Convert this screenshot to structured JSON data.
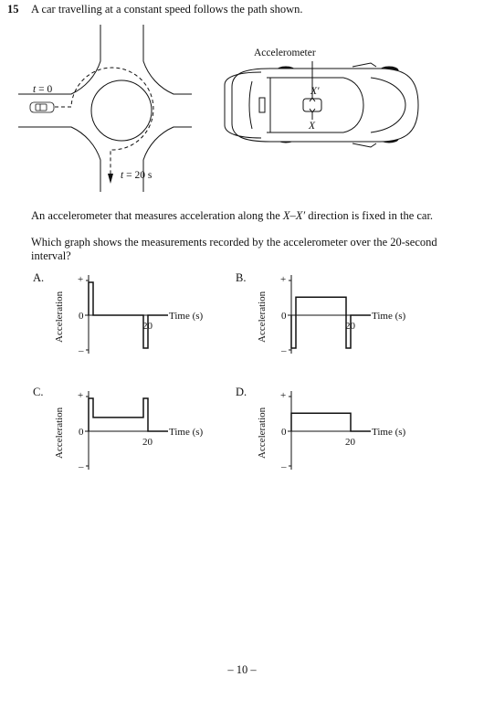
{
  "question": {
    "number": "15",
    "stem": "A car travelling at a constant speed follows the path shown.",
    "paragraph1_pre": "An accelerometer that measures acceleration along the ",
    "paragraph1_dir": "X–X′",
    "paragraph1_post": " direction is fixed in the car.",
    "paragraph2": "Which graph shows the measurements recorded by the accelerometer over the 20-second interval?"
  },
  "roundabout": {
    "t_start_var": "t",
    "t_start_rest": " = 0",
    "t_end_var": "t",
    "t_end_rest": " = 20 s"
  },
  "car": {
    "accelerometer_label": "Accelerometer",
    "x_prime_label": "X′",
    "x_label": "X"
  },
  "graphs": {
    "ylabel": "Acceleration",
    "xlabel": "Time (s)",
    "tick_20": "20",
    "plus": "+",
    "zero": "0",
    "minus": "–"
  },
  "options": [
    {
      "letter": "A."
    },
    {
      "letter": "B."
    },
    {
      "letter": "C."
    },
    {
      "letter": "D."
    }
  ],
  "chart_data": [
    {
      "type": "line",
      "option": "A",
      "xlabel": "Time (s)",
      "ylabel": "Acceleration",
      "x_ticks": [
        20
      ],
      "series": [
        {
          "x": [
            0,
            0,
            0.5,
            0.5,
            19.5,
            19.5,
            20,
            20
          ],
          "y": [
            0,
            1,
            1,
            0,
            0,
            -1,
            -1,
            0
          ]
        }
      ]
    },
    {
      "type": "line",
      "option": "B",
      "xlabel": "Time (s)",
      "ylabel": "Acceleration",
      "x_ticks": [
        20
      ],
      "series": [
        {
          "x": [
            0,
            0,
            0.5,
            0.5,
            19.5,
            19.5,
            20,
            20
          ],
          "y": [
            0,
            -1,
            -1,
            0.55,
            0.55,
            -1,
            -1,
            0
          ]
        }
      ]
    },
    {
      "type": "line",
      "option": "C",
      "xlabel": "Time (s)",
      "ylabel": "Acceleration",
      "x_ticks": [
        20
      ],
      "series": [
        {
          "x": [
            0,
            0,
            0.5,
            0.5,
            19.5,
            19.5,
            20,
            20
          ],
          "y": [
            0,
            1,
            1,
            0.42,
            0.42,
            1,
            1,
            0
          ]
        }
      ]
    },
    {
      "type": "line",
      "option": "D",
      "xlabel": "Time (s)",
      "ylabel": "Acceleration",
      "x_ticks": [
        20
      ],
      "series": [
        {
          "x": [
            0,
            0,
            20,
            20
          ],
          "y": [
            0,
            0.55,
            0.55,
            0
          ]
        }
      ]
    }
  ]
}
